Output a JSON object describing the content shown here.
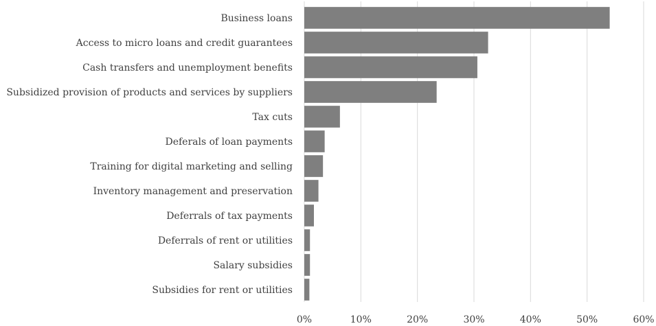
{
  "chart_data": {
    "type": "bar",
    "orientation": "horizontal",
    "categories": [
      "Business loans",
      "Access to micro loans and credit guarantees",
      "Cash transfers and unemployment benefits",
      "Subsidized provision of products and services by suppliers",
      "Tax cuts",
      "Deferals of loan payments",
      "Training for digital marketing and selling",
      "Inventory management and preservation",
      "Deferrals of tax payments",
      "Deferrals of rent or utilities",
      "Salary subsidies",
      "Subsidies for rent or utilities"
    ],
    "values": [
      54.0,
      32.5,
      30.6,
      23.4,
      6.3,
      3.6,
      3.3,
      2.5,
      1.7,
      1.0,
      1.0,
      0.9
    ],
    "x_ticks": [
      "0%",
      "10%",
      "20%",
      "30%",
      "40%",
      "50%",
      "60%"
    ],
    "xlim": [
      0,
      60
    ],
    "title": "",
    "xlabel": "",
    "ylabel": "",
    "grid": "vertical",
    "legend": "none",
    "bar_color": "#7f7f7f",
    "grid_color": "#d9d9d9",
    "text_color": "#404040"
  }
}
